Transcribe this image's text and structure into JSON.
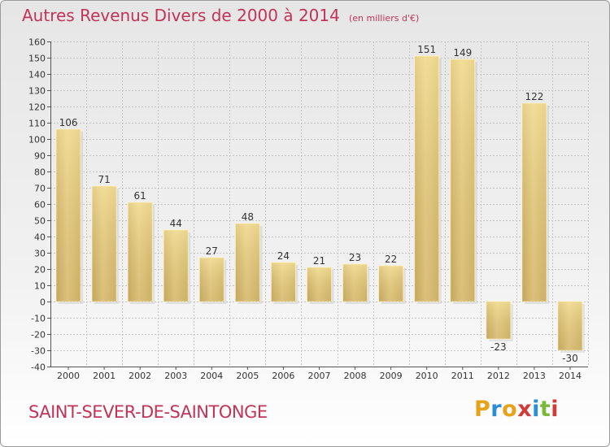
{
  "header": {
    "title": "Autres Revenus Divers de 2000 à 2014",
    "unit": "(en milliers d'€)"
  },
  "footer": {
    "commune": "SAINT-SEVER-DE-SAINTONGE",
    "logo_letters": [
      "P",
      "r",
      "o",
      "x",
      "i",
      "t",
      "i"
    ],
    "logo_colors": [
      "#e8a21a",
      "#2a8fd6",
      "#e8a21a",
      "#d23a3a",
      "#2a8fd6",
      "#7ab83a",
      "#d23a3a"
    ]
  },
  "chart_data": {
    "type": "bar",
    "categories": [
      "2000",
      "2001",
      "2002",
      "2003",
      "2004",
      "2005",
      "2006",
      "2007",
      "2008",
      "2009",
      "2010",
      "2011",
      "2012",
      "2013",
      "2014"
    ],
    "values": [
      106,
      71,
      61,
      44,
      27,
      48,
      24,
      21,
      23,
      22,
      151,
      149,
      -23,
      122,
      -30
    ],
    "title": "Autres Revenus Divers de 2000 à 2014",
    "subtitle": "(en milliers d'€)",
    "ylim": [
      -40,
      160
    ],
    "yticks": [
      -40,
      -30,
      -20,
      -10,
      0,
      10,
      20,
      30,
      40,
      50,
      60,
      70,
      80,
      90,
      100,
      110,
      120,
      130,
      140,
      150,
      160
    ],
    "grid": true,
    "bar_color": "#e8cf82"
  }
}
